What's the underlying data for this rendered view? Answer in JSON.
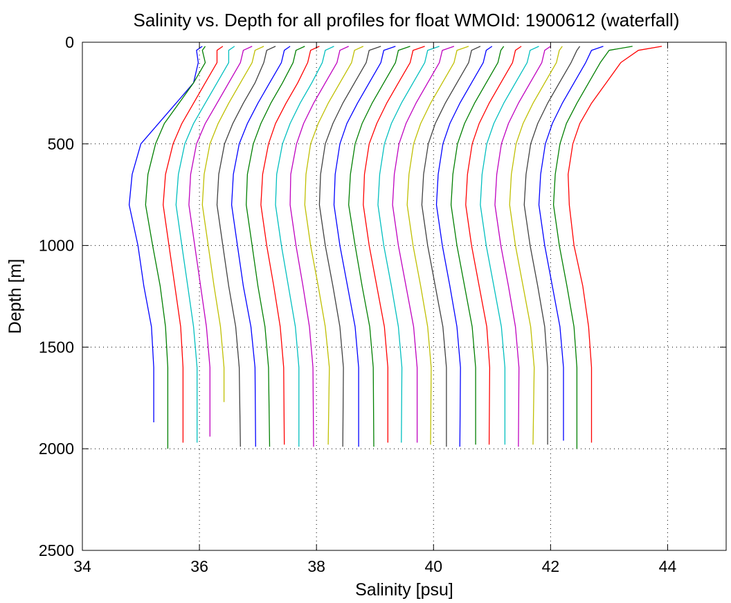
{
  "chart_data": {
    "type": "line",
    "title": "Salinity vs. Depth for all profiles for float WMOId: 1900612 (waterfall)",
    "xlabel": "Salinity [psu]",
    "ylabel": "Depth [m]",
    "xlim": [
      34,
      45
    ],
    "ylim": [
      0,
      2500
    ],
    "y_reversed": true,
    "grid": "dotted",
    "xticks": [
      34,
      36,
      38,
      40,
      42,
      44
    ],
    "yticks": [
      0,
      500,
      1000,
      1500,
      2000,
      2500
    ],
    "color_cycle": [
      "#0000ff",
      "#007f00",
      "#ff0000",
      "#00bfbf",
      "#bf00bf",
      "#bfbf00",
      "#404040"
    ],
    "series": [
      {
        "depth": [
          20,
          40,
          100,
          200,
          300,
          400,
          500,
          650,
          800,
          1000,
          1200,
          1400,
          1600,
          1870
        ],
        "salinity": [
          36.05,
          35.95,
          35.98,
          35.9,
          35.6,
          35.3,
          35.0,
          34.85,
          34.8,
          34.95,
          35.05,
          35.18,
          35.22,
          35.22
        ]
      },
      {
        "depth": [
          20,
          40,
          100,
          200,
          300,
          400,
          500,
          650,
          800,
          1000,
          1200,
          1400,
          1600,
          2000
        ],
        "salinity": [
          36.1,
          36.05,
          36.1,
          35.9,
          35.65,
          35.4,
          35.25,
          35.12,
          35.08,
          35.2,
          35.33,
          35.42,
          35.46,
          35.46
        ]
      },
      {
        "depth": [
          20,
          40,
          100,
          200,
          300,
          400,
          500,
          650,
          800,
          1000,
          1200,
          1400,
          1600,
          1970
        ],
        "salinity": [
          36.4,
          36.3,
          36.3,
          36.1,
          35.9,
          35.7,
          35.55,
          35.42,
          35.38,
          35.48,
          35.58,
          35.68,
          35.72,
          35.72
        ]
      },
      {
        "depth": [
          20,
          40,
          100,
          200,
          300,
          400,
          500,
          650,
          800,
          1000,
          1200,
          1400,
          1600,
          1970
        ],
        "salinity": [
          36.6,
          36.5,
          36.5,
          36.3,
          36.1,
          35.9,
          35.75,
          35.64,
          35.6,
          35.7,
          35.8,
          35.9,
          35.96,
          35.96
        ]
      },
      {
        "depth": [
          20,
          40,
          100,
          200,
          300,
          400,
          500,
          650,
          800,
          1000,
          1200,
          1400,
          1600,
          1940
        ],
        "salinity": [
          36.9,
          36.75,
          36.7,
          36.5,
          36.3,
          36.1,
          35.95,
          35.85,
          35.82,
          35.92,
          36.02,
          36.12,
          36.18,
          36.18
        ]
      },
      {
        "depth": [
          20,
          40,
          100,
          200,
          300,
          400,
          500,
          650,
          800,
          1000,
          1200,
          1400,
          1600,
          1770
        ],
        "salinity": [
          37.1,
          36.95,
          36.9,
          36.7,
          36.5,
          36.32,
          36.18,
          36.08,
          36.05,
          36.15,
          36.25,
          36.36,
          36.42,
          36.42
        ]
      },
      {
        "depth": [
          20,
          40,
          100,
          200,
          300,
          400,
          500,
          650,
          800,
          1000,
          1200,
          1400,
          1600,
          1990
        ],
        "salinity": [
          37.3,
          37.15,
          37.1,
          36.95,
          36.75,
          36.57,
          36.43,
          36.33,
          36.3,
          36.4,
          36.5,
          36.62,
          36.68,
          36.7
        ]
      },
      {
        "depth": [
          20,
          40,
          100,
          200,
          300,
          400,
          500,
          650,
          800,
          1000,
          1200,
          1400,
          1600,
          1990
        ],
        "salinity": [
          37.55,
          37.45,
          37.4,
          37.2,
          37.0,
          36.82,
          36.68,
          36.58,
          36.55,
          36.65,
          36.75,
          36.88,
          36.95,
          36.96
        ]
      },
      {
        "depth": [
          20,
          40,
          100,
          200,
          300,
          400,
          500,
          650,
          800,
          1000,
          1200,
          1400,
          1600,
          1990
        ],
        "salinity": [
          37.8,
          37.65,
          37.6,
          37.42,
          37.22,
          37.05,
          36.92,
          36.82,
          36.8,
          36.9,
          37.0,
          37.12,
          37.18,
          37.2
        ]
      },
      {
        "depth": [
          20,
          40,
          100,
          200,
          300,
          400,
          500,
          650,
          800,
          1000,
          1200,
          1400,
          1600,
          1980
        ],
        "salinity": [
          38.05,
          37.9,
          37.85,
          37.68,
          37.48,
          37.3,
          37.18,
          37.08,
          37.05,
          37.15,
          37.27,
          37.38,
          37.44,
          37.45
        ]
      },
      {
        "depth": [
          20,
          40,
          100,
          200,
          300,
          400,
          500,
          650,
          800,
          1000,
          1200,
          1400,
          1600,
          1990
        ],
        "salinity": [
          38.3,
          38.15,
          38.1,
          37.92,
          37.72,
          37.55,
          37.42,
          37.32,
          37.3,
          37.4,
          37.52,
          37.64,
          37.7,
          37.7
        ]
      },
      {
        "depth": [
          20,
          40,
          100,
          200,
          300,
          400,
          500,
          650,
          800,
          1000,
          1200,
          1400,
          1600,
          1990
        ],
        "salinity": [
          38.55,
          38.4,
          38.35,
          38.15,
          37.95,
          37.78,
          37.66,
          37.56,
          37.55,
          37.65,
          37.77,
          37.88,
          37.94,
          37.95
        ]
      },
      {
        "depth": [
          20,
          40,
          100,
          200,
          300,
          400,
          500,
          650,
          800,
          1000,
          1200,
          1400,
          1600,
          1980
        ],
        "salinity": [
          38.8,
          38.65,
          38.6,
          38.4,
          38.2,
          38.03,
          37.9,
          37.82,
          37.8,
          37.9,
          38.03,
          38.15,
          38.22,
          38.2
        ]
      },
      {
        "depth": [
          20,
          40,
          100,
          200,
          300,
          400,
          500,
          650,
          800,
          1000,
          1200,
          1400,
          1600,
          1990
        ],
        "salinity": [
          39.1,
          38.9,
          38.85,
          38.65,
          38.45,
          38.28,
          38.15,
          38.07,
          38.05,
          38.15,
          38.28,
          38.4,
          38.46,
          38.45
        ]
      },
      {
        "depth": [
          20,
          40,
          100,
          200,
          300,
          400,
          500,
          650,
          800,
          1000,
          1200,
          1400,
          1600,
          1990
        ],
        "salinity": [
          39.35,
          39.15,
          39.1,
          38.9,
          38.7,
          38.52,
          38.4,
          38.32,
          38.3,
          38.4,
          38.53,
          38.66,
          38.72,
          38.72
        ]
      },
      {
        "depth": [
          20,
          40,
          100,
          200,
          300,
          400,
          500,
          650,
          800,
          1000,
          1200,
          1400,
          1600,
          1990
        ],
        "salinity": [
          39.6,
          39.4,
          39.35,
          39.15,
          38.95,
          38.78,
          38.66,
          38.58,
          38.55,
          38.66,
          38.78,
          38.91,
          38.97,
          38.98
        ]
      },
      {
        "depth": [
          20,
          40,
          100,
          200,
          300,
          400,
          500,
          650,
          800,
          1000,
          1200,
          1400,
          1600,
          1970
        ],
        "salinity": [
          39.85,
          39.65,
          39.6,
          39.4,
          39.2,
          39.03,
          38.9,
          38.82,
          38.8,
          38.9,
          39.03,
          39.16,
          39.22,
          39.22
        ]
      },
      {
        "depth": [
          20,
          40,
          100,
          200,
          300,
          400,
          500,
          650,
          800,
          1000,
          1200,
          1400,
          1600,
          1970
        ],
        "salinity": [
          40.1,
          39.9,
          39.85,
          39.65,
          39.45,
          39.28,
          39.16,
          39.08,
          39.05,
          39.15,
          39.28,
          39.4,
          39.46,
          39.45
        ]
      },
      {
        "depth": [
          20,
          40,
          100,
          200,
          300,
          400,
          500,
          650,
          800,
          1000,
          1200,
          1400,
          1600,
          1970
        ],
        "salinity": [
          40.35,
          40.15,
          40.1,
          39.9,
          39.7,
          39.53,
          39.41,
          39.33,
          39.3,
          39.4,
          39.53,
          39.66,
          39.72,
          39.72
        ]
      },
      {
        "depth": [
          20,
          40,
          100,
          200,
          300,
          400,
          500,
          650,
          800,
          1000,
          1200,
          1400,
          1600,
          1980
        ],
        "salinity": [
          40.6,
          40.4,
          40.35,
          40.15,
          39.95,
          39.78,
          39.66,
          39.58,
          39.55,
          39.65,
          39.78,
          39.9,
          39.96,
          39.95
        ]
      },
      {
        "depth": [
          20,
          40,
          100,
          200,
          300,
          400,
          500,
          650,
          800,
          1000,
          1200,
          1400,
          1600,
          1990
        ],
        "salinity": [
          40.8,
          40.65,
          40.6,
          40.4,
          40.2,
          40.03,
          39.91,
          39.83,
          39.8,
          39.9,
          40.03,
          40.16,
          40.22,
          40.22
        ]
      },
      {
        "depth": [
          20,
          40,
          100,
          200,
          300,
          400,
          500,
          650,
          800,
          1000,
          1200,
          1400,
          1600,
          1990
        ],
        "salinity": [
          41.0,
          40.9,
          40.85,
          40.65,
          40.45,
          40.28,
          40.16,
          40.08,
          40.05,
          40.15,
          40.28,
          40.4,
          40.46,
          40.45
        ]
      },
      {
        "depth": [
          20,
          40,
          100,
          200,
          300,
          400,
          500,
          650,
          800,
          1000,
          1200,
          1400,
          1600,
          1980
        ],
        "salinity": [
          41.2,
          41.15,
          41.1,
          40.9,
          40.7,
          40.53,
          40.41,
          40.33,
          40.3,
          40.4,
          40.53,
          40.66,
          40.72,
          40.72
        ]
      },
      {
        "depth": [
          20,
          40,
          100,
          200,
          300,
          400,
          500,
          650,
          800,
          1000,
          1200,
          1400,
          1600,
          1980
        ],
        "salinity": [
          41.5,
          41.4,
          41.35,
          41.15,
          40.95,
          40.78,
          40.66,
          40.58,
          40.55,
          40.65,
          40.78,
          40.91,
          40.96,
          40.95
        ]
      },
      {
        "depth": [
          20,
          40,
          100,
          200,
          300,
          400,
          500,
          650,
          800,
          1000,
          1200,
          1400,
          1600,
          1980
        ],
        "salinity": [
          41.8,
          41.65,
          41.6,
          41.4,
          41.2,
          41.03,
          40.91,
          40.83,
          40.8,
          40.9,
          41.03,
          41.16,
          41.22,
          41.22
        ]
      },
      {
        "depth": [
          20,
          40,
          100,
          200,
          300,
          400,
          500,
          650,
          800,
          1000,
          1200,
          1400,
          1600,
          1990
        ],
        "salinity": [
          42.0,
          41.9,
          41.85,
          41.65,
          41.45,
          41.28,
          41.16,
          41.08,
          41.05,
          41.15,
          41.28,
          41.4,
          41.46,
          41.45
        ]
      },
      {
        "depth": [
          20,
          40,
          100,
          200,
          300,
          400,
          500,
          650,
          800,
          1000,
          1200,
          1400,
          1600,
          1980
        ],
        "salinity": [
          42.2,
          42.15,
          42.1,
          41.9,
          41.7,
          41.53,
          41.41,
          41.33,
          41.3,
          41.4,
          41.53,
          41.66,
          41.72,
          41.7
        ]
      },
      {
        "depth": [
          20,
          40,
          100,
          200,
          300,
          400,
          500,
          650,
          800,
          1000,
          1200,
          1400,
          1600,
          1980
        ],
        "salinity": [
          42.5,
          42.45,
          42.35,
          42.15,
          41.95,
          41.78,
          41.66,
          41.58,
          41.55,
          41.65,
          41.78,
          41.9,
          41.95,
          41.95
        ]
      },
      {
        "depth": [
          20,
          40,
          100,
          200,
          300,
          400,
          500,
          650,
          800,
          1000,
          1200,
          1400,
          1600,
          1960
        ],
        "salinity": [
          42.9,
          42.7,
          42.6,
          42.4,
          42.2,
          42.03,
          41.91,
          41.83,
          41.8,
          41.9,
          42.03,
          42.16,
          42.22,
          42.22
        ]
      },
      {
        "depth": [
          20,
          40,
          100,
          200,
          300,
          400,
          500,
          650,
          800,
          1000,
          1200,
          1400,
          1600,
          2000
        ],
        "salinity": [
          43.4,
          43.0,
          42.85,
          42.65,
          42.45,
          42.27,
          42.16,
          42.08,
          42.05,
          42.15,
          42.28,
          42.4,
          42.45,
          42.45
        ]
      },
      {
        "depth": [
          20,
          40,
          100,
          200,
          300,
          400,
          500,
          650,
          800,
          1000,
          1200,
          1400,
          1600,
          1970
        ],
        "salinity": [
          43.9,
          43.5,
          43.2,
          42.95,
          42.7,
          42.5,
          42.38,
          42.3,
          42.32,
          42.4,
          42.55,
          42.65,
          42.7,
          42.7
        ]
      }
    ]
  }
}
